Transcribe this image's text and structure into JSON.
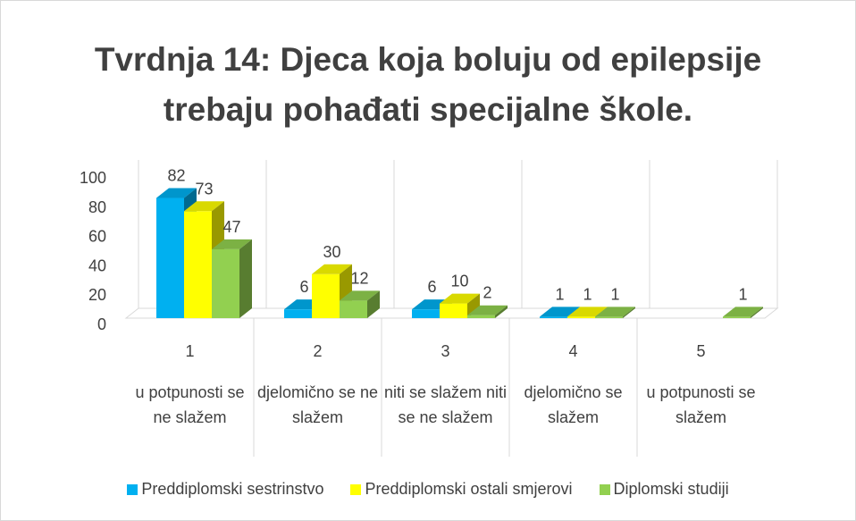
{
  "chart_data": {
    "type": "bar3d",
    "title": "Tvrdnja 14: Djeca koja boluju od epilepsije trebaju pohađati specijalne škole.",
    "categories": [
      "1",
      "2",
      "3",
      "4",
      "5"
    ],
    "category_descriptions": [
      "u potpunosti se ne slažem",
      "djelomično se ne slažem",
      "niti se slažem niti se ne slažem",
      "djelomično se slažem",
      "u potpunosti se slažem"
    ],
    "series": [
      {
        "name": "Preddiplomski sestrinstvo",
        "color": "#00b0f0",
        "values": [
          82,
          6,
          6,
          1,
          null
        ]
      },
      {
        "name": "Preddiplomski ostali smjerovi",
        "color": "#ffff00",
        "values": [
          73,
          30,
          10,
          1,
          null
        ]
      },
      {
        "name": "Diplomski studiji",
        "color": "#92d050",
        "values": [
          47,
          12,
          2,
          1,
          1
        ]
      }
    ],
    "ylim": [
      0,
      100
    ],
    "yticks": [
      0,
      20,
      40,
      60,
      80,
      100
    ],
    "legend": "bottom"
  }
}
